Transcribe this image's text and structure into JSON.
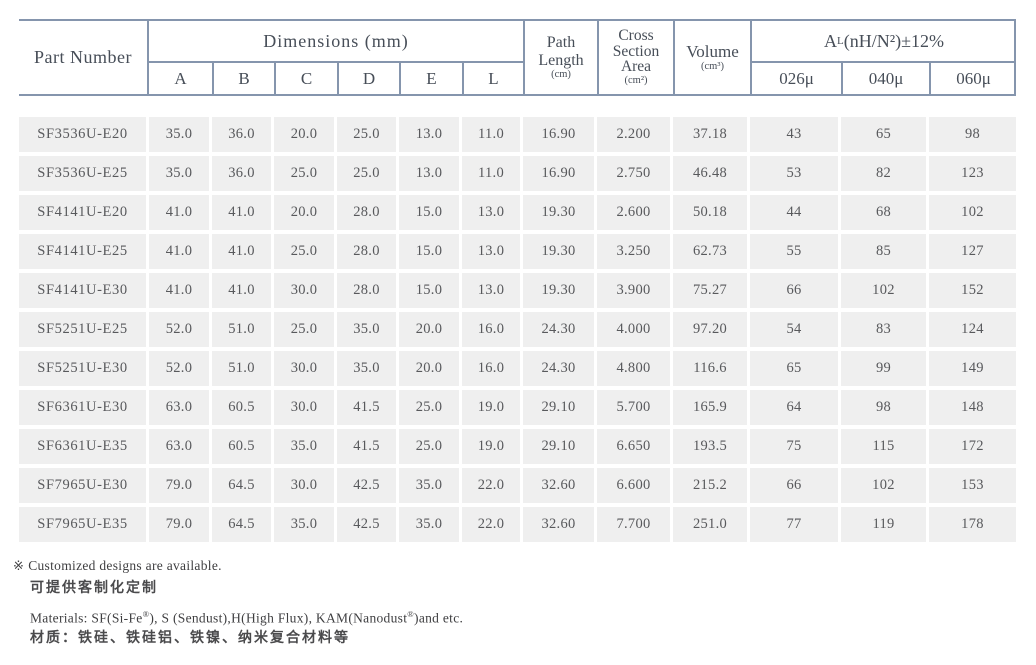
{
  "header": {
    "part_number": "Part Number",
    "dimensions_title": "Dimensions (mm)",
    "dim_cols": [
      "A",
      "B",
      "C",
      "D",
      "E",
      "L"
    ],
    "path_length": {
      "l1": "Path",
      "l2": "Length",
      "unit": "(cm)"
    },
    "cross_section": {
      "l1": "Cross",
      "l2": "Section",
      "l3": "Area",
      "unit": "(cm²)"
    },
    "volume": {
      "l1": "Volume",
      "unit": "(cm³)"
    },
    "al": {
      "a": "A",
      "sub": "L",
      "rest": "(nH/N²)±12%"
    },
    "al_cols": [
      "026μ",
      "040μ",
      "060μ"
    ]
  },
  "table": {
    "rows": [
      {
        "part": "SF3536U-E20",
        "dims": [
          "35.0",
          "36.0",
          "20.0",
          "25.0",
          "13.0",
          "11.0"
        ],
        "path": "16.90",
        "area": "2.200",
        "volume": "37.18",
        "al": [
          "43",
          "65",
          "98"
        ]
      },
      {
        "part": "SF3536U-E25",
        "dims": [
          "35.0",
          "36.0",
          "25.0",
          "25.0",
          "13.0",
          "11.0"
        ],
        "path": "16.90",
        "area": "2.750",
        "volume": "46.48",
        "al": [
          "53",
          "82",
          "123"
        ]
      },
      {
        "part": "SF4141U-E20",
        "dims": [
          "41.0",
          "41.0",
          "20.0",
          "28.0",
          "15.0",
          "13.0"
        ],
        "path": "19.30",
        "area": "2.600",
        "volume": "50.18",
        "al": [
          "44",
          "68",
          "102"
        ]
      },
      {
        "part": "SF4141U-E25",
        "dims": [
          "41.0",
          "41.0",
          "25.0",
          "28.0",
          "15.0",
          "13.0"
        ],
        "path": "19.30",
        "area": "3.250",
        "volume": "62.73",
        "al": [
          "55",
          "85",
          "127"
        ]
      },
      {
        "part": "SF4141U-E30",
        "dims": [
          "41.0",
          "41.0",
          "30.0",
          "28.0",
          "15.0",
          "13.0"
        ],
        "path": "19.30",
        "area": "3.900",
        "volume": "75.27",
        "al": [
          "66",
          "102",
          "152"
        ]
      },
      {
        "part": "SF5251U-E25",
        "dims": [
          "52.0",
          "51.0",
          "25.0",
          "35.0",
          "20.0",
          "16.0"
        ],
        "path": "24.30",
        "area": "4.000",
        "volume": "97.20",
        "al": [
          "54",
          "83",
          "124"
        ]
      },
      {
        "part": "SF5251U-E30",
        "dims": [
          "52.0",
          "51.0",
          "30.0",
          "35.0",
          "20.0",
          "16.0"
        ],
        "path": "24.30",
        "area": "4.800",
        "volume": "116.6",
        "al": [
          "65",
          "99",
          "149"
        ]
      },
      {
        "part": "SF6361U-E30",
        "dims": [
          "63.0",
          "60.5",
          "30.0",
          "41.5",
          "25.0",
          "19.0"
        ],
        "path": "29.10",
        "area": "5.700",
        "volume": "165.9",
        "al": [
          "64",
          "98",
          "148"
        ]
      },
      {
        "part": "SF6361U-E35",
        "dims": [
          "63.0",
          "60.5",
          "35.0",
          "41.5",
          "25.0",
          "19.0"
        ],
        "path": "29.10",
        "area": "6.650",
        "volume": "193.5",
        "al": [
          "75",
          "115",
          "172"
        ]
      },
      {
        "part": "SF7965U-E30",
        "dims": [
          "79.0",
          "64.5",
          "30.0",
          "42.5",
          "35.0",
          "22.0"
        ],
        "path": "32.60",
        "area": "6.600",
        "volume": "215.2",
        "al": [
          "66",
          "102",
          "153"
        ]
      },
      {
        "part": "SF7965U-E35",
        "dims": [
          "79.0",
          "64.5",
          "35.0",
          "42.5",
          "35.0",
          "22.0"
        ],
        "path": "32.60",
        "area": "7.700",
        "volume": "251.0",
        "al": [
          "77",
          "119",
          "178"
        ]
      }
    ]
  },
  "notes": {
    "marker": "※",
    "custom_en": "Customized designs are available.",
    "custom_zh": "可提供客制化定制",
    "materials_p0": "Materials: SF(Si-Fe",
    "reg_mark": "®",
    "materials_p1": "), S (Sendust),H(High Flux), KAM(Nanodust",
    "materials_p2": ")and etc.",
    "materials_zh": "材质：铁硅、铁硅铝、铁镍、纳米复合材料等"
  },
  "colors": {
    "line": "#8595ad",
    "row_bg": "#efefef",
    "data_text": "#58595c",
    "header_text": "#474e58"
  }
}
